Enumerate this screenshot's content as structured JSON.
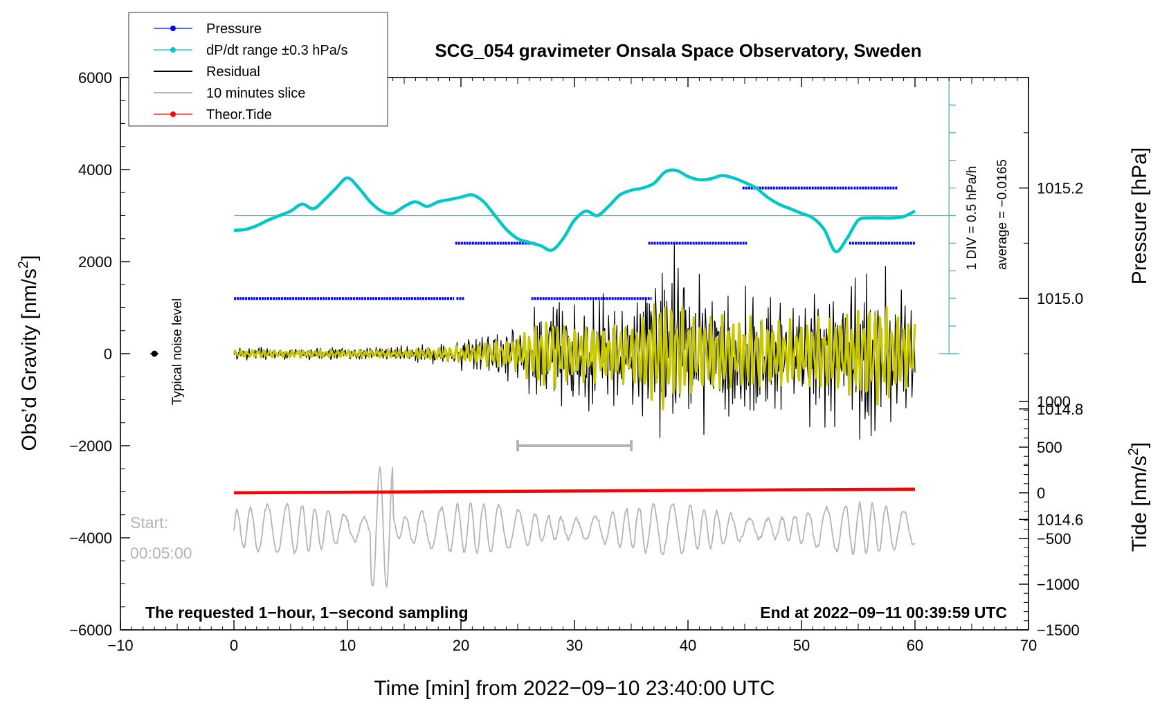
{
  "chart_data": {
    "type": "line",
    "title": "SCG_054 gravimeter Onsala Space Observatory, Sweden",
    "xlabel": "Time [min] from 2022−09−10 23:40:00 UTC",
    "xlim": [
      -10,
      70
    ],
    "xticks": [
      "−10",
      "0",
      "10",
      "20",
      "30",
      "40",
      "50",
      "60",
      "70"
    ],
    "y_left": {
      "label_main": "Obs’d Gravity [nm/s",
      "label_sup": "2",
      "label_end": "]",
      "ylim": [
        -6000,
        6000
      ],
      "ticks": [
        "6000",
        "4000",
        "2000",
        "0",
        "−2000",
        "−4000",
        "−6000"
      ]
    },
    "y_right_pressure": {
      "label": "Pressure [hPa]",
      "ylim": [
        1014.4,
        1015.4
      ],
      "ticks": [
        "1015.2",
        "1015.0",
        "1014.8",
        "1014.6"
      ]
    },
    "y_right_tide": {
      "label_main": "Tide [nm/s",
      "label_sup": "2",
      "label_end": "]",
      "ylim": [
        -1500,
        1000
      ],
      "ticks": [
        "1000",
        "500",
        "0",
        "−500",
        "−1000",
        "−1500"
      ]
    },
    "legend": [
      {
        "name": "Pressure",
        "color": "#0000ff",
        "marker": true
      },
      {
        "name": "dP/dt range ±0.3 hPa/s",
        "color": "#00c8c8",
        "marker": true
      },
      {
        "name": "Residual",
        "color": "#000000",
        "marker": false
      },
      {
        "name": "10 minutes slice",
        "color": "#b4b4b4",
        "marker": false
      },
      {
        "name": "Theor.Tide",
        "color": "#ff0000",
        "marker": true
      }
    ],
    "pressure_levels_hpa": [
      {
        "level": 1015.0,
        "from": 0,
        "to": 19.4
      },
      {
        "level": 1015.0,
        "from": 19.6,
        "to": 20.3
      },
      {
        "level": 1015.1,
        "from": 19.5,
        "to": 26.5
      },
      {
        "level": 1015.0,
        "from": 26.2,
        "to": 36.8
      },
      {
        "level": 1015.1,
        "from": 36.5,
        "to": 45.2
      },
      {
        "level": 1015.2,
        "from": 44.8,
        "to": 54.5
      },
      {
        "level": 1015.2,
        "from": 54.6,
        "to": 58.5
      },
      {
        "level": 1015.1,
        "from": 54.2,
        "to": 60
      }
    ],
    "dpdt_curve": {
      "x": [
        0,
        1,
        2,
        3,
        4,
        5,
        6,
        7,
        8,
        9,
        10,
        11,
        12,
        13,
        14,
        15,
        16,
        17,
        18,
        19,
        20,
        21,
        22,
        23,
        24,
        25,
        26,
        27,
        28,
        29,
        30,
        31,
        32,
        33,
        34,
        35,
        36,
        37,
        38,
        39,
        40,
        41,
        42,
        43,
        44,
        45,
        46,
        47,
        48,
        49,
        50,
        51,
        52,
        53,
        54,
        55,
        56,
        57,
        58,
        59,
        60
      ],
      "y": [
        2680,
        2700,
        2780,
        2900,
        3000,
        3100,
        3250,
        3150,
        3350,
        3600,
        3820,
        3600,
        3300,
        3100,
        3050,
        3200,
        3300,
        3200,
        3300,
        3350,
        3400,
        3450,
        3300,
        3000,
        2700,
        2500,
        2420,
        2350,
        2250,
        2500,
        2900,
        3100,
        3000,
        3200,
        3450,
        3550,
        3600,
        3700,
        3950,
        3980,
        3850,
        3780,
        3800,
        3870,
        3820,
        3720,
        3600,
        3400,
        3250,
        3150,
        3050,
        2950,
        2700,
        2220,
        2500,
        2900,
        2950,
        2950,
        2950,
        2980,
        3100
      ]
    },
    "dpdt_reference_level_nm_s2": 3000,
    "residual_envelope": {
      "x": [
        0,
        5,
        10,
        15,
        20,
        25,
        27,
        30,
        35,
        37,
        38,
        40,
        45,
        50,
        55,
        56,
        57,
        60
      ],
      "amplitude": [
        110,
        110,
        110,
        120,
        250,
        500,
        1100,
        850,
        900,
        1500,
        1800,
        1200,
        1100,
        1000,
        1300,
        1650,
        1500,
        1000
      ]
    },
    "slice_bracket": {
      "from": 25,
      "to": 35,
      "y": -2000
    },
    "slice_start_labels": [
      "Start:",
      "00:05:00"
    ],
    "theoretical_tide_nm_s2": {
      "x": [
        0,
        60
      ],
      "y": [
        0,
        40
      ]
    },
    "noise_marker": {
      "x": -7,
      "y": 0
    },
    "noise_label": "Typical noise level",
    "pressure_scale_labels": [
      "1 DIV = 0.5 hPa/h",
      "average = −0.0165"
    ],
    "notes": {
      "bottom_left": "The requested 1−hour, 1−second sampling",
      "bottom_right": "End at 2022−09−11 00:39:59 UTC"
    },
    "colors": {
      "pressure": "#0000ff",
      "dpdt": "#00c8c8",
      "dpdt_thin": "#40b8b8",
      "residual": "#000000",
      "filtered": "#c8c800",
      "slice": "#b4b4b4",
      "tide": "#ff0000"
    }
  }
}
